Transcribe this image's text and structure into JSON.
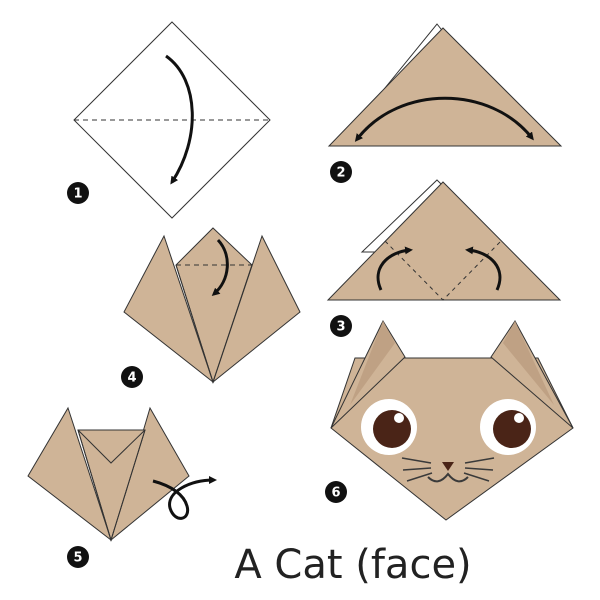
{
  "title": "A Cat (face)",
  "colors": {
    "paper": "#cfb497",
    "paper_shade": "#bfa184",
    "outline": "#3a3a3a",
    "ink": "#111111",
    "eye_dark": "#4a2417",
    "badge": "#111111"
  },
  "steps": [
    {
      "number": "1"
    },
    {
      "number": "2"
    },
    {
      "number": "3"
    },
    {
      "number": "4"
    },
    {
      "number": "5"
    },
    {
      "number": "6"
    }
  ]
}
